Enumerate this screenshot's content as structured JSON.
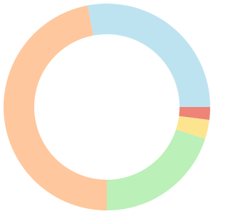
{
  "chart_data": {
    "type": "donut",
    "values": [
      28,
      2,
      3,
      20,
      47
    ],
    "colors": [
      "#bee3f0",
      "#ee8478",
      "#fde590",
      "#bbf0b8",
      "#ffc79d"
    ]
  }
}
